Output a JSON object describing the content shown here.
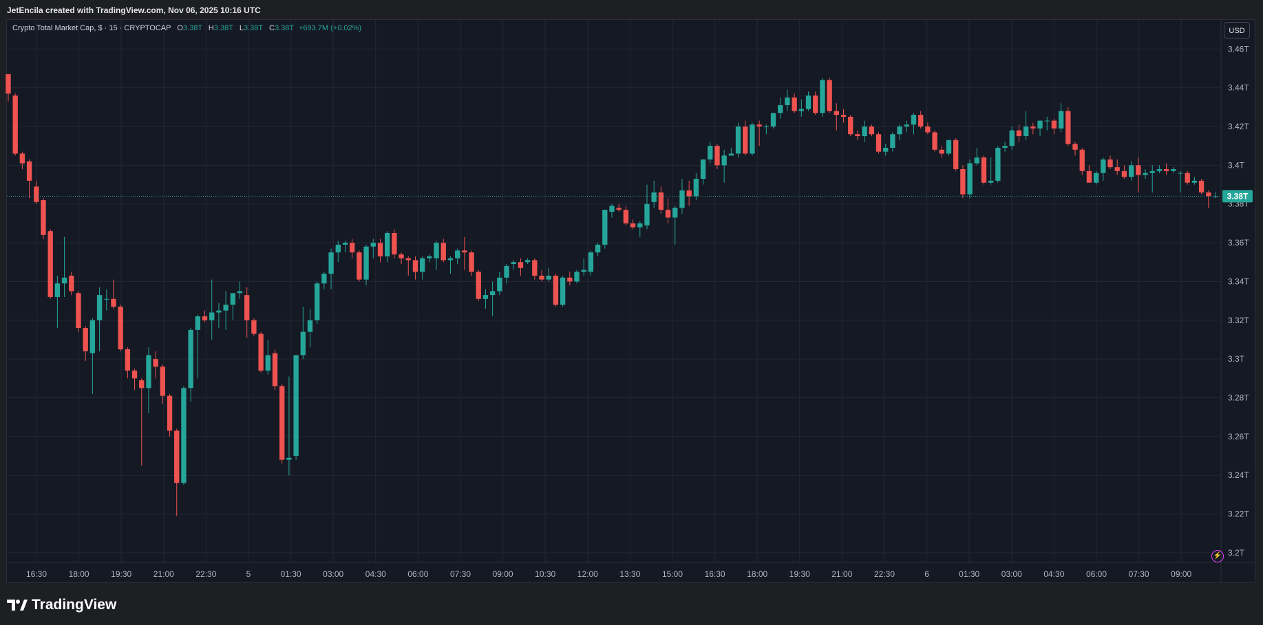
{
  "header": {
    "credit": "JetEncila created with TradingView.com, Nov 06, 2025 10:16 UTC"
  },
  "legend": {
    "symbol": "Crypto Total Market Cap, $ · 15 · CRYPTOCAP",
    "o_label": "O",
    "o_value": "3.38T",
    "h_label": "H",
    "h_value": "3.38T",
    "l_label": "L",
    "l_value": "3.38T",
    "c_label": "C",
    "c_value": "3.38T",
    "change": "+693.7M (+0.02%)"
  },
  "currency_button": "USD",
  "brand": {
    "name": "TradingView"
  },
  "colors": {
    "background": "#151924",
    "up": "#26a69a",
    "down": "#ef5350",
    "grid": "#242836",
    "axis_text": "#b2b5be"
  },
  "chart_data": {
    "type": "candlestick",
    "title": "Crypto Total Market Cap",
    "interval": "15",
    "currency": "USD",
    "unit": "T",
    "ylim": [
      3.195,
      3.475
    ],
    "y_ticks": [
      "3.2T",
      "3.22T",
      "3.24T",
      "3.26T",
      "3.28T",
      "3.3T",
      "3.32T",
      "3.34T",
      "3.36T",
      "3.38T",
      "3.4T",
      "3.42T",
      "3.44T",
      "3.46T"
    ],
    "x_ticks": [
      "16:30",
      "18:00",
      "19:30",
      "21:00",
      "22:30",
      "5",
      "01:30",
      "03:00",
      "04:30",
      "06:00",
      "07:30",
      "09:00",
      "10:30",
      "12:00",
      "13:30",
      "15:00",
      "16:30",
      "18:00",
      "19:30",
      "21:00",
      "22:30",
      "6",
      "01:30",
      "03:00",
      "04:30",
      "06:00",
      "07:30",
      "09:00"
    ],
    "last_price": "3.38T",
    "last_value": 3.384,
    "grid": true,
    "candles": [
      [
        3.447,
        3.447,
        3.433,
        3.437
      ],
      [
        3.436,
        3.437,
        3.405,
        3.406
      ],
      [
        3.406,
        3.407,
        3.398,
        3.401
      ],
      [
        3.402,
        3.403,
        3.383,
        3.392
      ],
      [
        3.389,
        3.392,
        3.38,
        3.381
      ],
      [
        3.382,
        3.383,
        3.362,
        3.364
      ],
      [
        3.366,
        3.367,
        3.331,
        3.332
      ],
      [
        3.332,
        3.343,
        3.316,
        3.339
      ],
      [
        3.339,
        3.363,
        3.332,
        3.342
      ],
      [
        3.343,
        3.345,
        3.333,
        3.335
      ],
      [
        3.334,
        3.335,
        3.314,
        3.316
      ],
      [
        3.316,
        3.317,
        3.299,
        3.304
      ],
      [
        3.303,
        3.321,
        3.282,
        3.32
      ],
      [
        3.32,
        3.337,
        3.304,
        3.333
      ],
      [
        3.331,
        3.336,
        3.325,
        3.331
      ],
      [
        3.331,
        3.341,
        3.326,
        3.327
      ],
      [
        3.327,
        3.328,
        3.304,
        3.305
      ],
      [
        3.305,
        3.306,
        3.29,
        3.294
      ],
      [
        3.294,
        3.295,
        3.284,
        3.29
      ],
      [
        3.289,
        3.29,
        3.245,
        3.285
      ],
      [
        3.285,
        3.306,
        3.272,
        3.302
      ],
      [
        3.3,
        3.304,
        3.29,
        3.296
      ],
      [
        3.296,
        3.297,
        3.277,
        3.281
      ],
      [
        3.281,
        3.282,
        3.26,
        3.263
      ],
      [
        3.263,
        3.264,
        3.219,
        3.236
      ],
      [
        3.236,
        3.286,
        3.235,
        3.285
      ],
      [
        3.285,
        3.316,
        3.278,
        3.315
      ],
      [
        3.315,
        3.323,
        3.29,
        3.322
      ],
      [
        3.322,
        3.325,
        3.319,
        3.32
      ],
      [
        3.32,
        3.341,
        3.31,
        3.324
      ],
      [
        3.324,
        3.329,
        3.316,
        3.325
      ],
      [
        3.325,
        3.335,
        3.315,
        3.328
      ],
      [
        3.328,
        3.333,
        3.32,
        3.334
      ],
      [
        3.334,
        3.34,
        3.331,
        3.335
      ],
      [
        3.333,
        3.337,
        3.311,
        3.32
      ],
      [
        3.32,
        3.321,
        3.312,
        3.313
      ],
      [
        3.313,
        3.314,
        3.293,
        3.294
      ],
      [
        3.294,
        3.31,
        3.292,
        3.302
      ],
      [
        3.303,
        3.305,
        3.284,
        3.286
      ],
      [
        3.286,
        3.287,
        3.246,
        3.248
      ],
      [
        3.248,
        3.291,
        3.24,
        3.249
      ],
      [
        3.25,
        3.302,
        3.248,
        3.302
      ],
      [
        3.302,
        3.327,
        3.3,
        3.314
      ],
      [
        3.314,
        3.326,
        3.306,
        3.32
      ],
      [
        3.32,
        3.34,
        3.318,
        3.339
      ],
      [
        3.339,
        3.345,
        3.336,
        3.344
      ],
      [
        3.344,
        3.357,
        3.336,
        3.355
      ],
      [
        3.355,
        3.361,
        3.35,
        3.359
      ],
      [
        3.359,
        3.361,
        3.355,
        3.36
      ],
      [
        3.36,
        3.362,
        3.352,
        3.355
      ],
      [
        3.355,
        3.356,
        3.34,
        3.341
      ],
      [
        3.341,
        3.359,
        3.338,
        3.358
      ],
      [
        3.358,
        3.362,
        3.352,
        3.36
      ],
      [
        3.36,
        3.362,
        3.35,
        3.353
      ],
      [
        3.353,
        3.366,
        3.35,
        3.365
      ],
      [
        3.365,
        3.367,
        3.352,
        3.354
      ],
      [
        3.354,
        3.355,
        3.349,
        3.352
      ],
      [
        3.352,
        3.353,
        3.343,
        3.351
      ],
      [
        3.351,
        3.353,
        3.341,
        3.345
      ],
      [
        3.345,
        3.353,
        3.341,
        3.352
      ],
      [
        3.352,
        3.354,
        3.35,
        3.353
      ],
      [
        3.352,
        3.361,
        3.346,
        3.36
      ],
      [
        3.36,
        3.362,
        3.35,
        3.351
      ],
      [
        3.351,
        3.353,
        3.344,
        3.352
      ],
      [
        3.352,
        3.357,
        3.349,
        3.356
      ],
      [
        3.356,
        3.363,
        3.346,
        3.355
      ],
      [
        3.355,
        3.356,
        3.343,
        3.345
      ],
      [
        3.345,
        3.346,
        3.33,
        3.331
      ],
      [
        3.331,
        3.336,
        3.326,
        3.333
      ],
      [
        3.333,
        3.34,
        3.322,
        3.335
      ],
      [
        3.335,
        3.345,
        3.333,
        3.342
      ],
      [
        3.342,
        3.349,
        3.339,
        3.348
      ],
      [
        3.349,
        3.351,
        3.346,
        3.35
      ],
      [
        3.35,
        3.352,
        3.343,
        3.347
      ],
      [
        3.35,
        3.352,
        3.349,
        3.351
      ],
      [
        3.351,
        3.352,
        3.341,
        3.343
      ],
      [
        3.343,
        3.346,
        3.34,
        3.341
      ],
      [
        3.341,
        3.347,
        3.34,
        3.343
      ],
      [
        3.343,
        3.344,
        3.327,
        3.328
      ],
      [
        3.328,
        3.343,
        3.327,
        3.342
      ],
      [
        3.342,
        3.345,
        3.338,
        3.34
      ],
      [
        3.34,
        3.346,
        3.339,
        3.345
      ],
      [
        3.345,
        3.352,
        3.343,
        3.346
      ],
      [
        3.345,
        3.356,
        3.343,
        3.355
      ],
      [
        3.355,
        3.36,
        3.353,
        3.359
      ],
      [
        3.359,
        3.377,
        3.357,
        3.377
      ],
      [
        3.376,
        3.38,
        3.373,
        3.379
      ],
      [
        3.378,
        3.38,
        3.376,
        3.377
      ],
      [
        3.377,
        3.379,
        3.369,
        3.37
      ],
      [
        3.37,
        3.372,
        3.367,
        3.368
      ],
      [
        3.368,
        3.371,
        3.363,
        3.37
      ],
      [
        3.369,
        3.39,
        3.367,
        3.38
      ],
      [
        3.381,
        3.392,
        3.378,
        3.386
      ],
      [
        3.386,
        3.389,
        3.375,
        3.377
      ],
      [
        3.377,
        3.383,
        3.37,
        3.373
      ],
      [
        3.373,
        3.379,
        3.359,
        3.378
      ],
      [
        3.378,
        3.393,
        3.375,
        3.387
      ],
      [
        3.387,
        3.392,
        3.379,
        3.384
      ],
      [
        3.384,
        3.396,
        3.382,
        3.393
      ],
      [
        3.393,
        3.403,
        3.39,
        3.403
      ],
      [
        3.403,
        3.412,
        3.401,
        3.41
      ],
      [
        3.41,
        3.411,
        3.398,
        3.4
      ],
      [
        3.4,
        3.408,
        3.391,
        3.405
      ],
      [
        3.405,
        3.409,
        3.405,
        3.406
      ],
      [
        3.406,
        3.422,
        3.404,
        3.42
      ],
      [
        3.42,
        3.423,
        3.405,
        3.406
      ],
      [
        3.406,
        3.422,
        3.405,
        3.421
      ],
      [
        3.421,
        3.423,
        3.41,
        3.42
      ],
      [
        3.42,
        3.421,
        3.416,
        3.42
      ],
      [
        3.42,
        3.427,
        3.419,
        3.427
      ],
      [
        3.427,
        3.435,
        3.424,
        3.431
      ],
      [
        3.431,
        3.439,
        3.428,
        3.435
      ],
      [
        3.435,
        3.437,
        3.427,
        3.428
      ],
      [
        3.428,
        3.434,
        3.425,
        3.429
      ],
      [
        3.429,
        3.438,
        3.428,
        3.436
      ],
      [
        3.436,
        3.438,
        3.426,
        3.427
      ],
      [
        3.427,
        3.445,
        3.425,
        3.444
      ],
      [
        3.444,
        3.445,
        3.427,
        3.428
      ],
      [
        3.428,
        3.432,
        3.418,
        3.426
      ],
      [
        3.426,
        3.429,
        3.422,
        3.425
      ],
      [
        3.425,
        3.426,
        3.415,
        3.416
      ],
      [
        3.416,
        3.418,
        3.413,
        3.415
      ],
      [
        3.415,
        3.423,
        3.412,
        3.42
      ],
      [
        3.42,
        3.421,
        3.415,
        3.416
      ],
      [
        3.416,
        3.417,
        3.406,
        3.407
      ],
      [
        3.407,
        3.411,
        3.405,
        3.409
      ],
      [
        3.409,
        3.417,
        3.407,
        3.416
      ],
      [
        3.416,
        3.421,
        3.413,
        3.42
      ],
      [
        3.42,
        3.423,
        3.417,
        3.421
      ],
      [
        3.421,
        3.427,
        3.416,
        3.426
      ],
      [
        3.426,
        3.428,
        3.419,
        3.42
      ],
      [
        3.42,
        3.422,
        3.416,
        3.417
      ],
      [
        3.417,
        3.418,
        3.407,
        3.408
      ],
      [
        3.408,
        3.41,
        3.404,
        3.406
      ],
      [
        3.406,
        3.412,
        3.405,
        3.413
      ],
      [
        3.413,
        3.414,
        3.397,
        3.398
      ],
      [
        3.398,
        3.4,
        3.383,
        3.385
      ],
      [
        3.385,
        3.403,
        3.383,
        3.401
      ],
      [
        3.401,
        3.409,
        3.4,
        3.404
      ],
      [
        3.404,
        3.405,
        3.39,
        3.391
      ],
      [
        3.391,
        3.404,
        3.39,
        3.392
      ],
      [
        3.392,
        3.41,
        3.391,
        3.409
      ],
      [
        3.409,
        3.412,
        3.407,
        3.41
      ],
      [
        3.41,
        3.42,
        3.408,
        3.418
      ],
      [
        3.418,
        3.421,
        3.412,
        3.415
      ],
      [
        3.415,
        3.428,
        3.413,
        3.42
      ],
      [
        3.42,
        3.422,
        3.416,
        3.419
      ],
      [
        3.419,
        3.423,
        3.415,
        3.423
      ],
      [
        3.423,
        3.425,
        3.418,
        3.423
      ],
      [
        3.423,
        3.424,
        3.416,
        3.419
      ],
      [
        3.419,
        3.432,
        3.417,
        3.428
      ],
      [
        3.428,
        3.43,
        3.41,
        3.411
      ],
      [
        3.411,
        3.412,
        3.405,
        3.408
      ],
      [
        3.408,
        3.409,
        3.395,
        3.397
      ],
      [
        3.397,
        3.4,
        3.391,
        3.391
      ],
      [
        3.391,
        3.397,
        3.39,
        3.396
      ],
      [
        3.396,
        3.404,
        3.392,
        3.403
      ],
      [
        3.403,
        3.405,
        3.398,
        3.399
      ],
      [
        3.399,
        3.403,
        3.395,
        3.397
      ],
      [
        3.397,
        3.4,
        3.393,
        3.394
      ],
      [
        3.394,
        3.402,
        3.392,
        3.4
      ],
      [
        3.4,
        3.404,
        3.386,
        3.395
      ],
      [
        3.395,
        3.398,
        3.393,
        3.396
      ],
      [
        3.396,
        3.4,
        3.386,
        3.397
      ],
      [
        3.397,
        3.4,
        3.396,
        3.398
      ],
      [
        3.398,
        3.401,
        3.395,
        3.397
      ],
      [
        3.397,
        3.399,
        3.396,
        3.398
      ],
      [
        3.396,
        3.397,
        3.386,
        3.396
      ],
      [
        3.396,
        3.397,
        3.39,
        3.391
      ],
      [
        3.391,
        3.394,
        3.39,
        3.392
      ],
      [
        3.392,
        3.393,
        3.385,
        3.386
      ],
      [
        3.386,
        3.387,
        3.378,
        3.384
      ],
      [
        3.384,
        3.386,
        3.383,
        3.384
      ]
    ]
  }
}
